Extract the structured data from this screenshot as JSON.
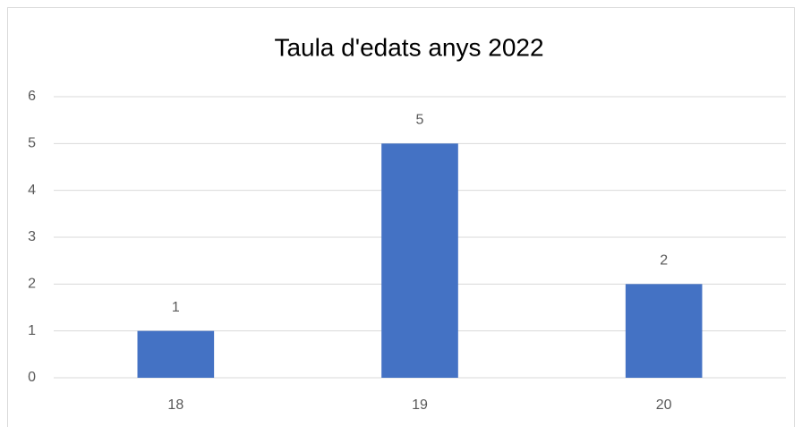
{
  "chart_data": {
    "type": "bar",
    "title": "Taula d'edats anys 2022",
    "categories": [
      "18",
      "19",
      "20"
    ],
    "values": [
      1,
      5,
      2
    ],
    "color": "#4472c4",
    "ylim": [
      0,
      6
    ],
    "yticks": [
      0,
      1,
      2,
      3,
      4,
      5,
      6
    ],
    "grid": true,
    "data_labels": true
  }
}
